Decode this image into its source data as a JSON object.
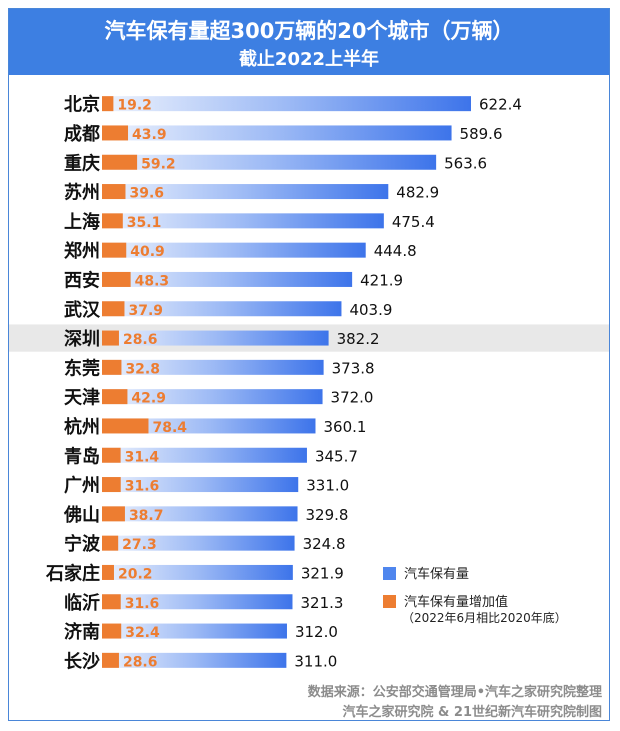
{
  "title": "汽车保有量超300万辆的20个城市（万辆）",
  "subtitle": "截止2022上半年",
  "colors": {
    "header": "#3d7fe2",
    "stock_bar": "#5b8def",
    "increase_bar": "#ed7d31",
    "highlight": "#e8e8e8"
  },
  "highlighted_city": "深圳",
  "chart_data": {
    "type": "bar",
    "orientation": "horizontal",
    "title": "汽车保有量超300万辆的20个城市（万辆）",
    "subtitle": "截止2022上半年",
    "categories": [
      "北京",
      "成都",
      "重庆",
      "苏州",
      "上海",
      "郑州",
      "西安",
      "武汉",
      "深圳",
      "东莞",
      "天津",
      "杭州",
      "青岛",
      "广州",
      "佛山",
      "宁波",
      "石家庄",
      "临沂",
      "济南",
      "长沙"
    ],
    "series": [
      {
        "name": "汽车保有量",
        "values": [
          622.4,
          589.6,
          563.6,
          482.9,
          475.4,
          444.8,
          421.9,
          403.9,
          382.2,
          373.8,
          372.0,
          360.1,
          345.7,
          331.0,
          329.8,
          324.8,
          321.9,
          321.3,
          312.0,
          311.0
        ]
      },
      {
        "name": "汽车保有量增加值",
        "values": [
          19.2,
          43.9,
          59.2,
          39.6,
          35.1,
          40.9,
          48.3,
          37.9,
          28.6,
          32.8,
          42.9,
          78.4,
          31.4,
          31.6,
          38.7,
          27.3,
          20.2,
          31.6,
          32.4,
          28.6
        ]
      }
    ],
    "stock_labels": [
      "622.4",
      "589.6",
      "563.6",
      "482.9",
      "475.4",
      "444.8",
      "421.9",
      "403.9",
      "382.2",
      "373.8",
      "372.0",
      "360.1",
      "345.7",
      "331.0",
      "329.8",
      "324.8",
      "321.9",
      "321.3",
      "312.0",
      "311.0"
    ],
    "increase_labels": [
      "19.2",
      "43.9",
      "59.2",
      "39.6",
      "35.1",
      "40.9",
      "48.3",
      "37.9",
      "28.6",
      "32.8",
      "42.9",
      "78.4",
      "31.4",
      "31.6",
      "38.7",
      "27.3",
      "20.2",
      "31.6",
      "32.4",
      "28.6"
    ],
    "xlim": [
      0,
      622.4
    ],
    "xlabel": "",
    "ylabel": ""
  },
  "legend": {
    "stock": "汽车保有量",
    "increase": "汽车保有量增加值",
    "increase_note": "（2022年6月相比2020年底）"
  },
  "source": {
    "line1": "数据来源：公安部交通管理局•汽车之家研究院整理",
    "line2": "汽车之家研究院 & 21世纪新汽车研究院制图"
  }
}
